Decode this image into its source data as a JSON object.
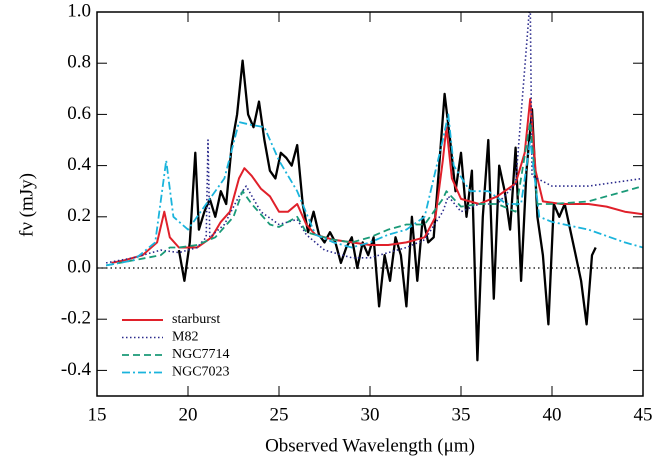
{
  "chart_data": {
    "type": "line",
    "x_label": "Observed Wavelength (μm)",
    "y_label": "fν (mJy)",
    "xlim": [
      15,
      45
    ],
    "xticks": [
      15,
      20,
      25,
      30,
      35,
      40,
      45
    ],
    "ylim": [
      -0.5,
      1.0
    ],
    "yticks": [
      {
        "value": -0.4,
        "label": "-0.4"
      },
      -0.2,
      {
        "value": 0,
        "label": "0.0"
      },
      0.2,
      0.4,
      0.6,
      0.8,
      {
        "value": 1,
        "label": "1.0"
      }
    ],
    "reference_line": 0,
    "series": [
      {
        "color": "#000000",
        "x": [
          19.5,
          19.8,
          20.1,
          20.4,
          20.6,
          20.9,
          21.2,
          21.5,
          21.8,
          22.1,
          22.4,
          22.7,
          23.0,
          23.3,
          23.6,
          23.9,
          24.2,
          24.5,
          24.8,
          25.1,
          25.4,
          25.7,
          26.0,
          26.3,
          26.6,
          26.9,
          27.2,
          27.5,
          27.8,
          28.1,
          28.4,
          28.7,
          29.0,
          29.3,
          29.6,
          29.9,
          30.2,
          30.5,
          30.8,
          31.1,
          31.4,
          31.7,
          32.0,
          32.3,
          32.6,
          32.9,
          33.2,
          33.5,
          33.8,
          34.1,
          34.4,
          34.7,
          35.0,
          35.3,
          35.6,
          35.9,
          36.2,
          36.5,
          36.8,
          37.1,
          37.4,
          37.7,
          38.0,
          38.3,
          38.6,
          38.9,
          39.2,
          39.5,
          39.8,
          40.1,
          40.4,
          40.7,
          41.0,
          41.3,
          41.6,
          41.9,
          42.2,
          42.4
        ],
        "values": [
          0.07,
          -0.05,
          0.1,
          0.45,
          0.15,
          0.22,
          0.27,
          0.2,
          0.3,
          0.25,
          0.48,
          0.6,
          0.81,
          0.6,
          0.55,
          0.65,
          0.5,
          0.38,
          0.35,
          0.45,
          0.43,
          0.4,
          0.48,
          0.25,
          0.14,
          0.22,
          0.13,
          0.1,
          0.14,
          0.1,
          0.02,
          0.08,
          0.12,
          0.0,
          0.1,
          0.05,
          0.12,
          -0.15,
          0.05,
          -0.05,
          0.12,
          0.05,
          -0.15,
          0.2,
          -0.05,
          0.2,
          0.1,
          0.12,
          0.4,
          0.68,
          0.5,
          0.3,
          0.45,
          0.2,
          0.38,
          -0.36,
          0.2,
          0.5,
          -0.12,
          0.4,
          0.3,
          0.15,
          0.47,
          -0.05,
          0.38,
          0.62,
          0.2,
          0.05,
          -0.22,
          0.25,
          0.2,
          0.25,
          0.15,
          0.05,
          -0.05,
          -0.22,
          0.05,
          0.08
        ]
      },
      {
        "name": "starburst",
        "color": "#e0202a",
        "x": [
          15.8,
          16.5,
          17.5,
          18.3,
          18.7,
          19.0,
          19.5,
          20.5,
          21.3,
          21.8,
          22.3,
          22.8,
          23.1,
          23.5,
          24.0,
          24.5,
          25.0,
          25.5,
          26.0,
          26.5,
          27.0,
          28.0,
          29.0,
          30.0,
          31.0,
          32.0,
          33.0,
          33.6,
          34.0,
          34.2,
          34.5,
          35.0,
          36.0,
          37.0,
          38.0,
          38.5,
          38.8,
          39.1,
          39.5,
          40.5,
          42.0,
          43.0,
          44.0,
          45.0
        ],
        "values": [
          0.02,
          0.03,
          0.05,
          0.1,
          0.22,
          0.12,
          0.08,
          0.08,
          0.12,
          0.18,
          0.22,
          0.35,
          0.39,
          0.36,
          0.31,
          0.28,
          0.22,
          0.22,
          0.25,
          0.17,
          0.13,
          0.11,
          0.1,
          0.09,
          0.09,
          0.1,
          0.12,
          0.2,
          0.42,
          0.55,
          0.35,
          0.27,
          0.25,
          0.28,
          0.33,
          0.45,
          0.66,
          0.38,
          0.26,
          0.25,
          0.25,
          0.24,
          0.22,
          0.21
        ]
      },
      {
        "name": "M82",
        "color": "#2a2a8c",
        "x": [
          15.5,
          17,
          18.5,
          19.5,
          20.5,
          21.0,
          21.1,
          21.2,
          22,
          22.8,
          23.2,
          24,
          25,
          26,
          26.5,
          27.5,
          29,
          30,
          31,
          32,
          33,
          34,
          34.3,
          35,
          36,
          37,
          38,
          38.8,
          38.9,
          40,
          42,
          44,
          45
        ],
        "values": [
          0.02,
          0.04,
          0.07,
          0.06,
          0.08,
          0.12,
          0.5,
          0.12,
          0.17,
          0.28,
          0.32,
          0.22,
          0.17,
          0.19,
          0.13,
          0.07,
          0.04,
          0.04,
          0.06,
          0.08,
          0.11,
          0.22,
          0.28,
          0.22,
          0.25,
          0.25,
          0.33,
          1.05,
          0.36,
          0.32,
          0.32,
          0.34,
          0.35
        ]
      },
      {
        "name": "NGC7714",
        "color": "#1a9a78",
        "x": [
          15.5,
          17,
          18.5,
          19,
          19.5,
          20.5,
          21.5,
          22.5,
          23.0,
          23.5,
          24.5,
          25,
          26,
          26.5,
          28,
          29,
          30,
          31,
          32,
          33,
          34,
          34.2,
          35,
          36,
          37,
          38,
          38.8,
          39.2,
          40,
          42,
          44,
          45
        ],
        "values": [
          0.01,
          0.03,
          0.05,
          0.08,
          0.08,
          0.09,
          0.12,
          0.2,
          0.3,
          0.25,
          0.17,
          0.16,
          0.2,
          0.14,
          0.11,
          0.1,
          0.12,
          0.15,
          0.17,
          0.17,
          0.27,
          0.3,
          0.24,
          0.25,
          0.25,
          0.22,
          0.57,
          0.25,
          0.25,
          0.26,
          0.3,
          0.32
        ]
      },
      {
        "name": "NGC7023",
        "color": "#1ab4dc",
        "x": [
          15.5,
          17,
          18.2,
          18.8,
          19.2,
          20,
          21,
          22,
          22.8,
          23.4,
          24.2,
          25,
          26,
          27,
          28,
          29,
          30,
          31,
          32,
          33,
          34,
          34.3,
          34.6,
          35.5,
          36.5,
          37.5,
          38.3,
          38.8,
          39.3,
          40,
          42,
          44,
          45
        ],
        "values": [
          0.01,
          0.03,
          0.1,
          0.42,
          0.2,
          0.15,
          0.25,
          0.35,
          0.57,
          0.56,
          0.55,
          0.42,
          0.3,
          0.13,
          0.1,
          0.08,
          0.1,
          0.13,
          0.15,
          0.2,
          0.5,
          0.6,
          0.4,
          0.3,
          0.3,
          0.25,
          0.25,
          0.5,
          0.2,
          0.18,
          0.15,
          0.1,
          0.08
        ]
      }
    ]
  }
}
